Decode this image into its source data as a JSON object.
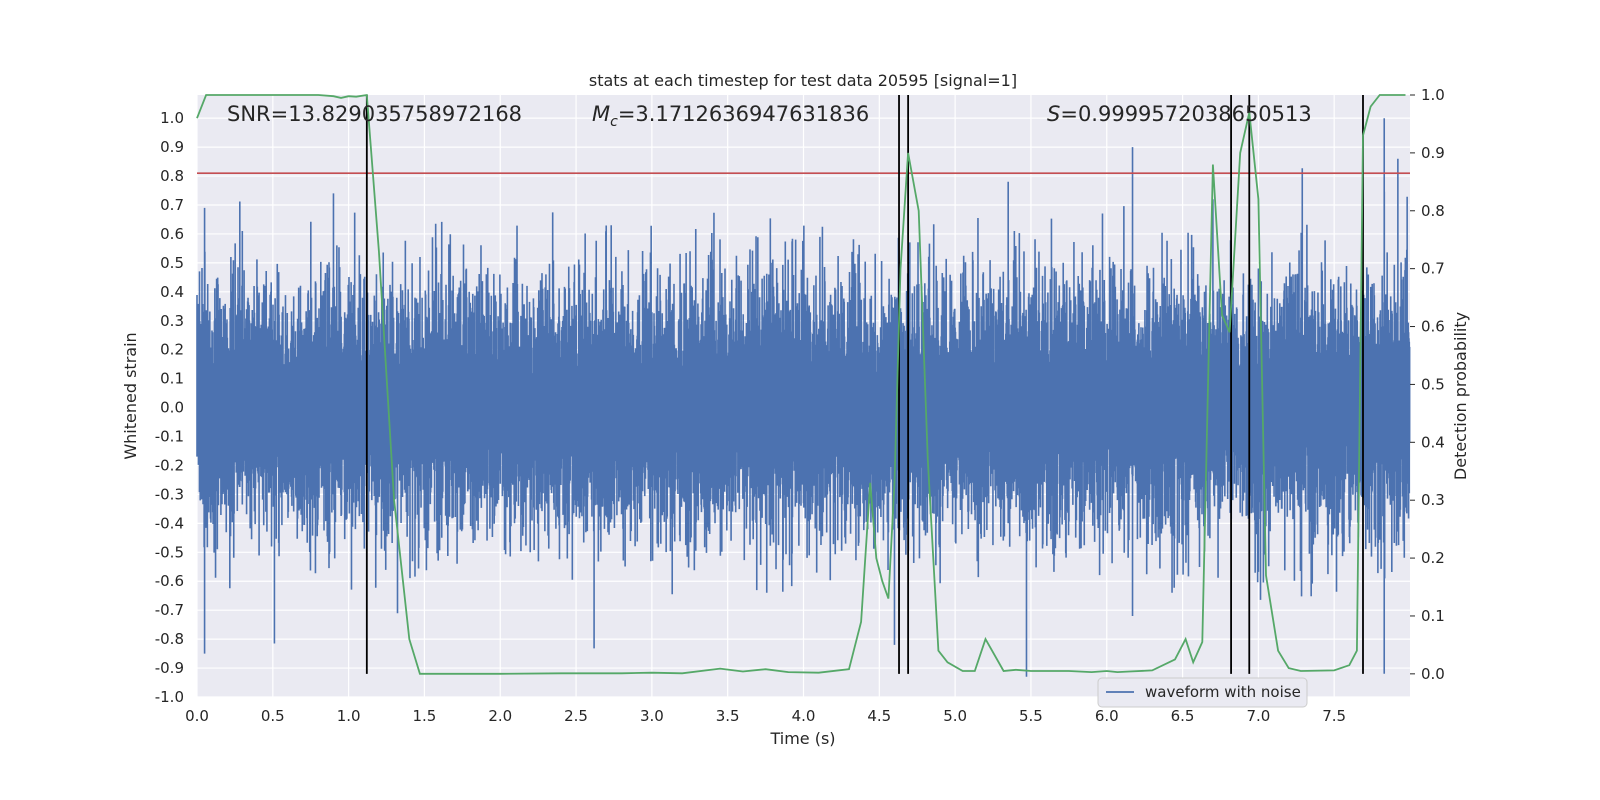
{
  "chart_data": {
    "type": "line",
    "title": "stats at each timestep for test data 20595 [signal=1]",
    "xlabel": "Time (s)",
    "ylabel_left": "Whitened strain",
    "ylabel_right": "Detection probability",
    "xlim": [
      0,
      8
    ],
    "ylim_left": [
      -1.0,
      1.08
    ],
    "ylim_right": [
      -0.04,
      1.0
    ],
    "x_ticks": [
      "0.0",
      "0.5",
      "1.0",
      "1.5",
      "2.0",
      "2.5",
      "3.0",
      "3.5",
      "4.0",
      "4.5",
      "5.0",
      "5.5",
      "6.0",
      "6.5",
      "7.0",
      "7.5"
    ],
    "y_left_ticks": [
      "1.0",
      "0.9",
      "0.8",
      "0.7",
      "0.6",
      "0.5",
      "0.4",
      "0.3",
      "0.2",
      "0.1",
      "0.0",
      "-0.1",
      "-0.2",
      "-0.3",
      "-0.4",
      "-0.5",
      "-0.6",
      "-0.7",
      "-0.8",
      "-0.9",
      "-1.0"
    ],
    "y_right_ticks": [
      "1.0",
      "0.9",
      "0.8",
      "0.7",
      "0.6",
      "0.5",
      "0.4",
      "0.3",
      "0.2",
      "0.1",
      "0.0"
    ],
    "grid": true,
    "legend_position": "bottom-right",
    "annotations": {
      "snr": "SNR=13.829035758972168",
      "mc_symbol": "M",
      "mc_sub": "c",
      "mc_value": "=3.1712636947631836",
      "s_symbol": "S",
      "s_value": "=0.9999572038650513"
    },
    "threshold_left": 0.81,
    "vertical_markers_x": [
      1.12,
      4.63,
      4.69,
      6.82,
      6.94,
      7.69
    ],
    "series": [
      {
        "name": "waveform with noise",
        "axis": "left",
        "color": "#4c72b0",
        "style": "dense noise, typical envelope approx ±0.35, spikes up to ±0.9",
        "envelope_peak": 1.0,
        "envelope_trough": -0.93
      },
      {
        "axis": "right",
        "color": "#55a868",
        "x": [
          0.0,
          0.06,
          0.2,
          0.4,
          0.6,
          0.8,
          0.9,
          0.95,
          1.0,
          1.05,
          1.12,
          1.2,
          1.3,
          1.4,
          1.47,
          1.6,
          2.0,
          2.4,
          2.8,
          3.0,
          3.2,
          3.45,
          3.6,
          3.75,
          3.9,
          4.1,
          4.3,
          4.38,
          4.44,
          4.48,
          4.52,
          4.56,
          4.6,
          4.64,
          4.69,
          4.76,
          4.82,
          4.89,
          4.95,
          5.05,
          5.13,
          5.2,
          5.32,
          5.4,
          5.5,
          5.6,
          5.75,
          5.9,
          6.0,
          6.07,
          6.15,
          6.3,
          6.45,
          6.52,
          6.57,
          6.63,
          6.7,
          6.76,
          6.81,
          6.88,
          6.94,
          7.0,
          7.05,
          7.13,
          7.2,
          7.28,
          7.5,
          7.6,
          7.65,
          7.69,
          7.74,
          7.8,
          7.9,
          7.97
        ],
        "y": [
          0.96,
          1.0,
          1.0,
          1.0,
          1.0,
          1.0,
          0.998,
          0.995,
          0.998,
          0.997,
          1.0,
          0.73,
          0.3,
          0.06,
          0.0,
          0.0,
          0.0,
          0.001,
          0.001,
          0.002,
          0.001,
          0.009,
          0.004,
          0.008,
          0.003,
          0.002,
          0.008,
          0.09,
          0.33,
          0.2,
          0.16,
          0.13,
          0.33,
          0.7,
          0.9,
          0.8,
          0.37,
          0.04,
          0.02,
          0.005,
          0.005,
          0.06,
          0.005,
          0.007,
          0.005,
          0.005,
          0.005,
          0.003,
          0.005,
          0.003,
          0.004,
          0.006,
          0.025,
          0.06,
          0.02,
          0.055,
          0.88,
          0.62,
          0.59,
          0.9,
          0.97,
          0.82,
          0.17,
          0.04,
          0.01,
          0.005,
          0.006,
          0.015,
          0.04,
          0.93,
          0.98,
          1.0,
          1.0,
          1.0
        ]
      }
    ]
  }
}
